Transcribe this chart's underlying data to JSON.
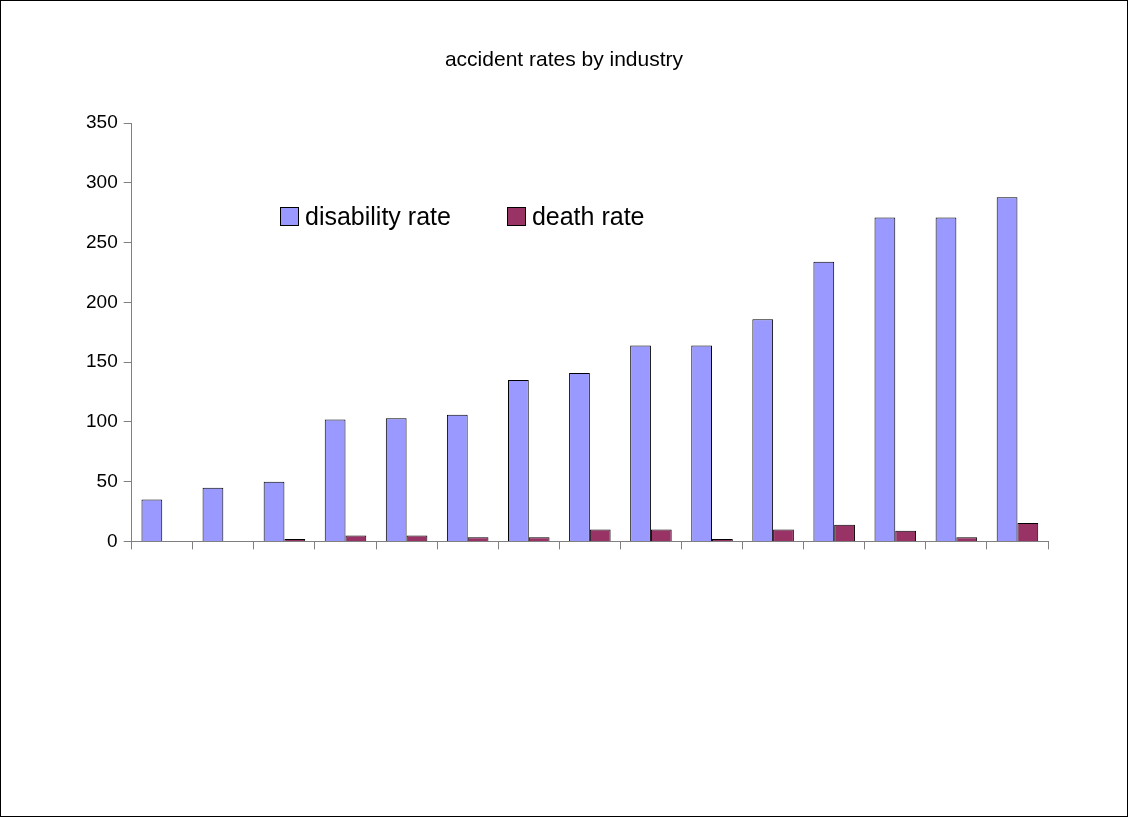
{
  "chart_data": {
    "type": "bar",
    "title": "accident rates by industry",
    "categories": [
      null,
      null,
      null,
      null,
      null,
      null,
      null,
      null,
      null,
      null,
      null,
      null,
      null,
      null,
      null
    ],
    "series": [
      {
        "name": "disability rate",
        "color": "#9999ff",
        "values": [
          35,
          45,
          50,
          102,
          103,
          106,
          135,
          141,
          164,
          164,
          186,
          234,
          271,
          271,
          288
        ]
      },
      {
        "name": "death rate",
        "color": "#993366",
        "values": [
          0,
          0,
          2,
          5,
          5,
          3.5,
          3.5,
          10,
          10,
          2,
          10,
          14,
          9,
          3.5,
          15.5
        ]
      }
    ],
    "ylim": [
      0,
      350
    ],
    "yticks": [
      0,
      50,
      100,
      150,
      200,
      250,
      300,
      350
    ],
    "grid": false,
    "legend": "top left"
  }
}
